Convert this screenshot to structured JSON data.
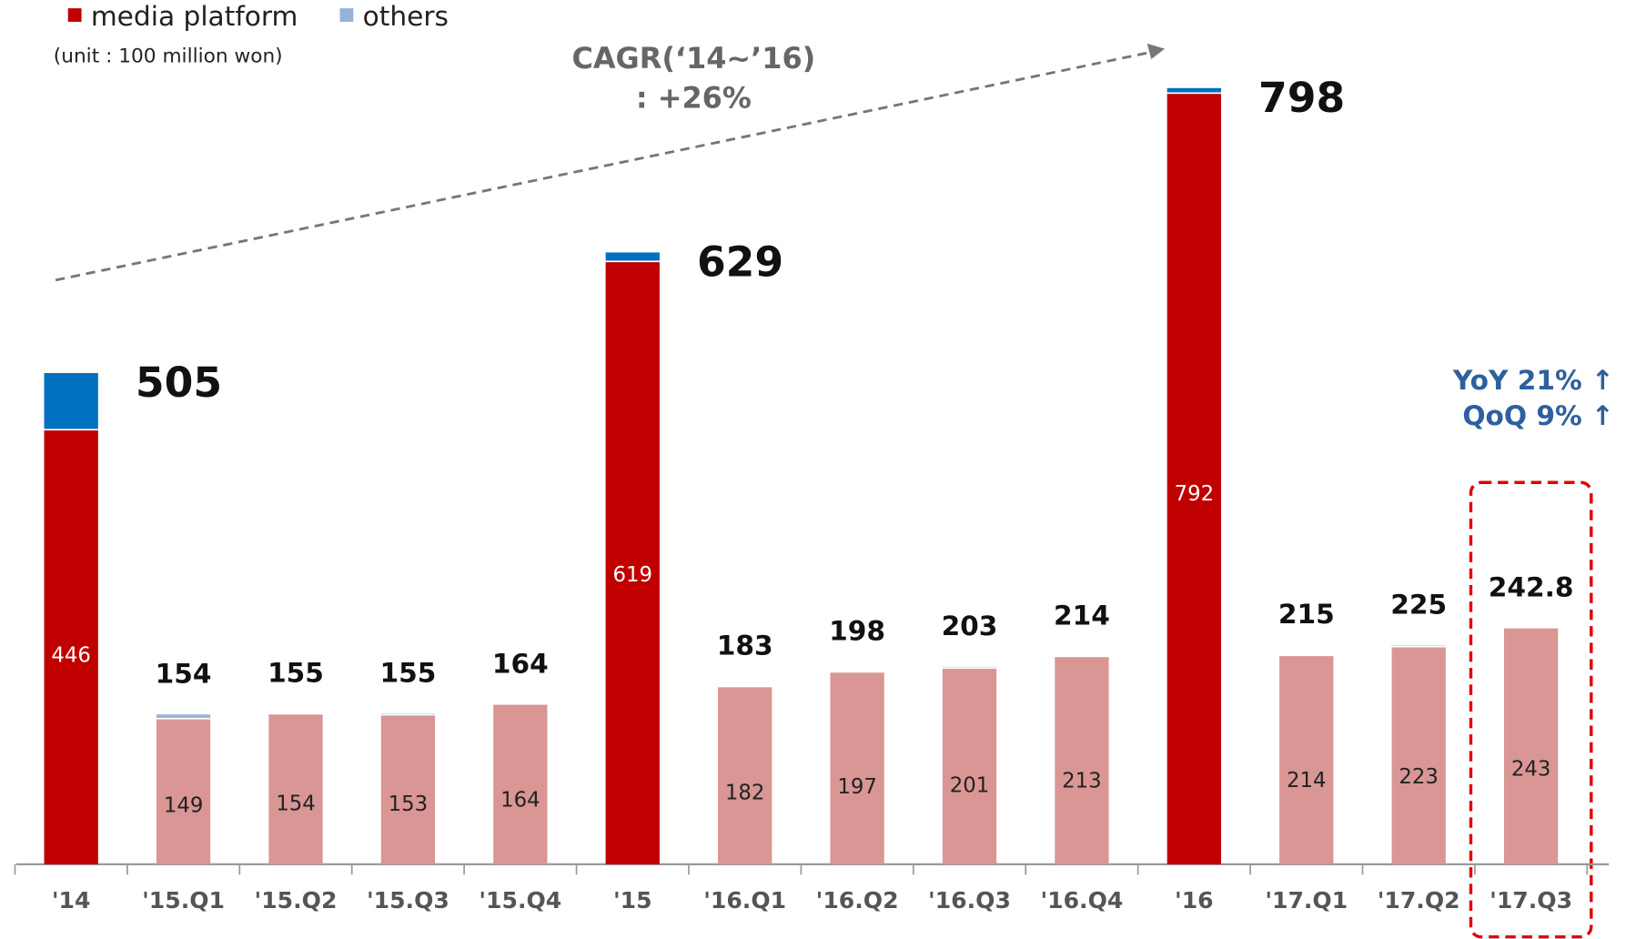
{
  "chart_data": {
    "type": "stacked-bar",
    "subtitle": "(unit  : 100 million won)",
    "categories": [
      "'14",
      "'15.Q1",
      "'15.Q2",
      "'15.Q3",
      "'15.Q4",
      "'15",
      "'16.Q1",
      "'16.Q2",
      "'16.Q3",
      "'16.Q4",
      "'16",
      "'17.Q1",
      "'17.Q2",
      "'17.Q3"
    ],
    "series": [
      {
        "name": "media platform",
        "color": "#c00000",
        "colors": [
          "#c00000",
          "#d99694",
          "#d99694",
          "#d99694",
          "#d99694",
          "#c00000",
          "#d99694",
          "#d99694",
          "#d99694",
          "#d99694",
          "#c00000",
          "#d99694",
          "#d99694",
          "#d99694"
        ],
        "values": [
          446,
          149,
          154,
          153,
          164,
          619,
          182,
          197,
          201,
          213,
          792,
          214,
          223,
          242.5
        ],
        "value_labels": [
          "446",
          "149",
          "154",
          "153",
          "164",
          "619",
          "182",
          "197",
          "201",
          "213",
          "792",
          "214",
          "223",
          "243"
        ]
      },
      {
        "name": "others",
        "color": "#95b3d7",
        "colors": [
          "#0070c0",
          "#95b3d7",
          "#95b3d7",
          "#95b3d7",
          "#95b3d7",
          "#0070c0",
          "#95b3d7",
          "#95b3d7",
          "#95b3d7",
          "#95b3d7",
          "#0070c0",
          "#95b3d7",
          "#95b3d7",
          "#95b3d7"
        ],
        "values": [
          59,
          5,
          1,
          2,
          0,
          10,
          1,
          1,
          2,
          1,
          6,
          1,
          2,
          0.3
        ]
      }
    ],
    "totals": [
      505,
      154,
      155,
      155,
      164,
      629,
      183,
      198,
      203,
      214,
      798,
      215,
      225,
      242.8
    ],
    "ylim": [
      0,
      800
    ],
    "annotations": {
      "cagr_title": "CAGR(‘14~’16)",
      "cagr_value": ": +26%",
      "yoy": "YoY 21% ↑",
      "qoq": "QoQ  9% ↑"
    }
  }
}
